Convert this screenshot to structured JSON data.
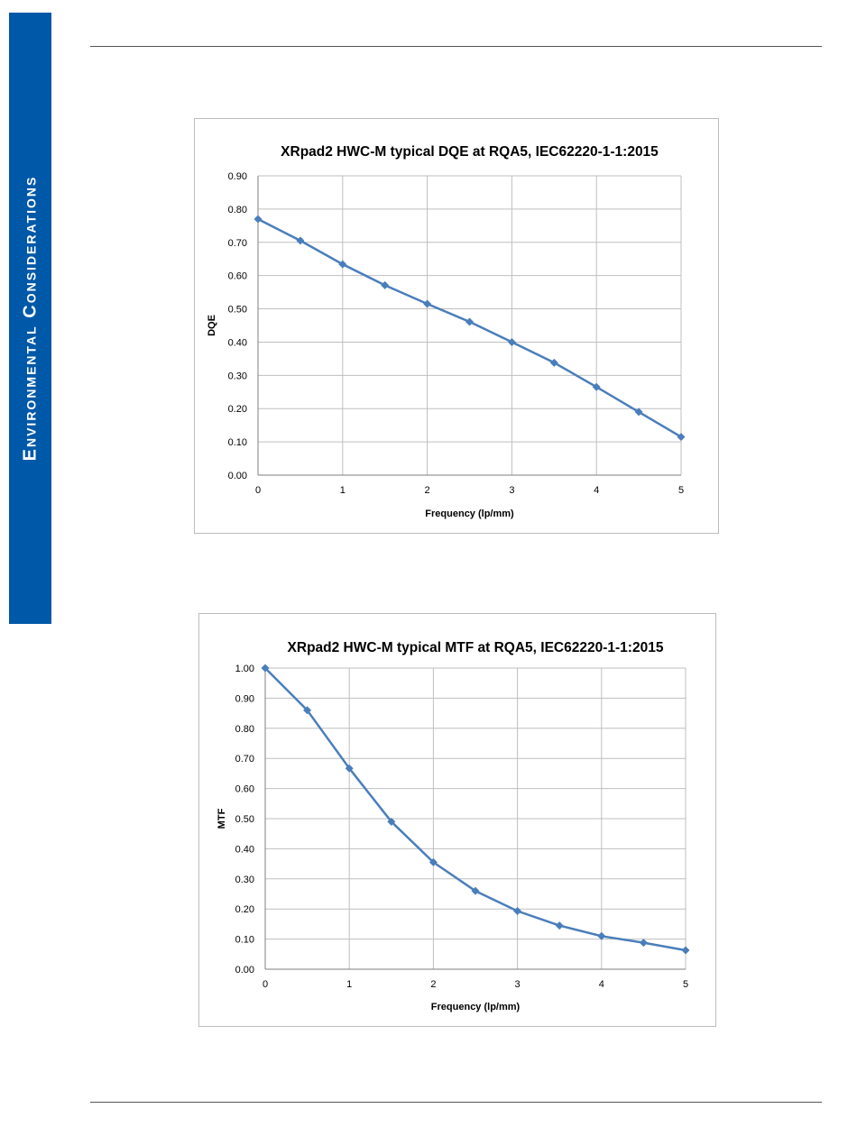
{
  "sidebar": {
    "section_label": "Environmental Considerations"
  },
  "colors": {
    "sidebar": "#0058a8",
    "series": "#4a7ebb",
    "grid": "#bfbfbf",
    "axis": "#7f7f7f"
  },
  "chart_data": [
    {
      "type": "line",
      "title": "XRpad2 HWC-M typical DQE at RQA5, IEC62220-1-1:2015",
      "xlabel": "Frequency (lp/mm)",
      "ylabel": "DQE",
      "xlim": [
        0,
        5
      ],
      "ylim": [
        0,
        0.9
      ],
      "xticks": [
        "0",
        "1",
        "2",
        "3",
        "4",
        "5"
      ],
      "yticks": [
        "0.00",
        "0.10",
        "0.20",
        "0.30",
        "0.40",
        "0.50",
        "0.60",
        "0.70",
        "0.80",
        "0.90"
      ],
      "grid": true,
      "x": [
        0,
        0.5,
        1,
        1.5,
        2,
        2.5,
        3,
        3.5,
        4,
        4.5,
        5
      ],
      "y": [
        0.77,
        0.705,
        0.634,
        0.571,
        0.515,
        0.461,
        0.4,
        0.338,
        0.265,
        0.19,
        0.115
      ]
    },
    {
      "type": "line",
      "title": "XRpad2 HWC-M typical MTF at RQA5, IEC62220-1-1:2015",
      "xlabel": "Frequency (lp/mm)",
      "ylabel": "MTF",
      "xlim": [
        0,
        5
      ],
      "ylim": [
        0,
        1.0
      ],
      "xticks": [
        "0",
        "1",
        "2",
        "3",
        "4",
        "5"
      ],
      "yticks": [
        "0.00",
        "0.10",
        "0.20",
        "0.30",
        "0.40",
        "0.50",
        "0.60",
        "0.70",
        "0.80",
        "0.90",
        "1.00"
      ],
      "grid": true,
      "x": [
        0,
        0.5,
        1,
        1.5,
        2,
        2.5,
        3,
        3.5,
        4,
        4.5,
        5
      ],
      "y": [
        1.0,
        0.86,
        0.667,
        0.49,
        0.355,
        0.26,
        0.193,
        0.145,
        0.11,
        0.088,
        0.063
      ]
    }
  ]
}
